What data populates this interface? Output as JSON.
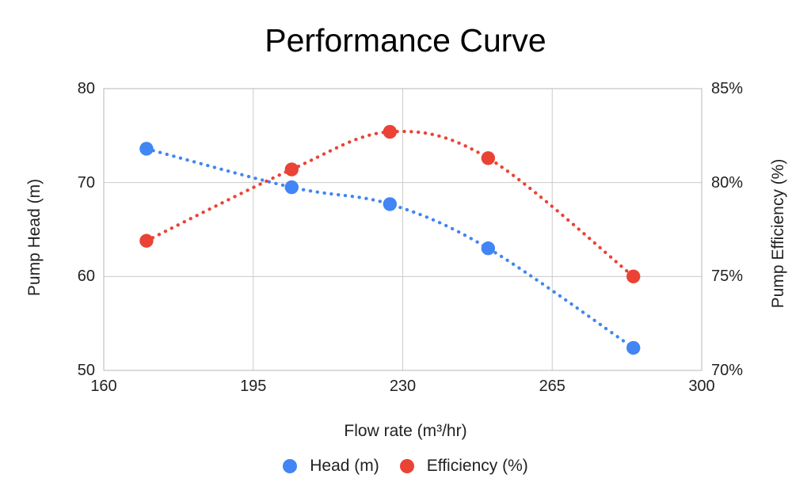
{
  "chart_data": {
    "type": "line",
    "title": "Performance Curve",
    "xlabel": "Flow rate (m³/hr)",
    "ylabel_left": "Pump Head (m)",
    "ylabel_right": "Pump Efficiency (%)",
    "line_style": "dotted",
    "marker": "circle",
    "grid": true,
    "legend_position": "bottom",
    "x_axis": {
      "min": 160,
      "max": 300,
      "tick_values": [
        160,
        195,
        230,
        265,
        300
      ],
      "tick_labels": [
        "160",
        "195",
        "230",
        "265",
        "300"
      ]
    },
    "y_axis_left": {
      "min": 50,
      "max": 80,
      "tick_values": [
        80,
        70,
        60,
        50
      ],
      "tick_labels": [
        "80",
        "70",
        "60",
        "50"
      ]
    },
    "y_axis_right": {
      "min": 70,
      "max": 85,
      "tick_values": [
        85,
        80,
        75,
        70
      ],
      "tick_labels": [
        "85%",
        "80%",
        "75%",
        "70%"
      ]
    },
    "x": [
      170,
      204,
      227,
      250,
      284
    ],
    "series": [
      {
        "name": "Head (m)",
        "axis": "left",
        "color": "#4285F4",
        "values": [
          73.6,
          69.5,
          67.7,
          63.0,
          52.4
        ]
      },
      {
        "name": "Efficiency (%)",
        "axis": "right",
        "color": "#EA4335",
        "values": [
          76.9,
          80.7,
          82.7,
          81.3,
          75.0
        ]
      }
    ]
  },
  "palette": {
    "head_blue": "#4285F4",
    "efficiency_red": "#EA4335",
    "gridline": "#cccccc",
    "axis_border": "#b7b7b7",
    "text": "#222222",
    "title_text": "#000000",
    "background": "#ffffff"
  }
}
